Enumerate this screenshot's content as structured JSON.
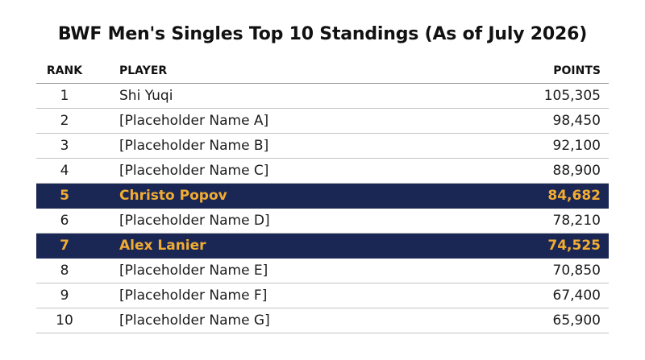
{
  "chart_data": {
    "type": "table",
    "title": "BWF Men's Singles Top 10 Standings (As of July 2026)",
    "columns": [
      "RANK",
      "PLAYER",
      "POINTS"
    ],
    "rows": [
      {
        "rank": "1",
        "player": "Shi Yuqi",
        "points": "105,305",
        "highlight": false
      },
      {
        "rank": "2",
        "player": "[Placeholder Name A]",
        "points": "98,450",
        "highlight": false
      },
      {
        "rank": "3",
        "player": "[Placeholder Name B]",
        "points": "92,100",
        "highlight": false
      },
      {
        "rank": "4",
        "player": "[Placeholder Name C]",
        "points": "88,900",
        "highlight": false
      },
      {
        "rank": "5",
        "player": "Christo Popov",
        "points": "84,682",
        "highlight": true
      },
      {
        "rank": "6",
        "player": "[Placeholder Name D]",
        "points": "78,210",
        "highlight": false
      },
      {
        "rank": "7",
        "player": "Alex Lanier",
        "points": "74,525",
        "highlight": true
      },
      {
        "rank": "8",
        "player": "[Placeholder Name E]",
        "points": "70,850",
        "highlight": false
      },
      {
        "rank": "9",
        "player": "[Placeholder Name F]",
        "points": "67,400",
        "highlight": false
      },
      {
        "rank": "10",
        "player": "[Placeholder Name G]",
        "points": "65,900",
        "highlight": false
      }
    ]
  },
  "colors": {
    "highlight_background": "#1a2755",
    "highlight_text": "#f2ac32"
  }
}
